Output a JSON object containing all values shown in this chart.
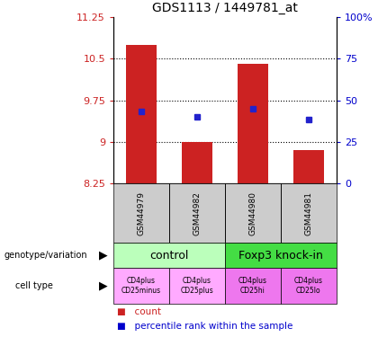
{
  "title": "GDS1113 / 1449781_at",
  "samples": [
    "GSM44979",
    "GSM44982",
    "GSM44980",
    "GSM44981"
  ],
  "bar_values": [
    10.75,
    9.0,
    10.4,
    8.85
  ],
  "bar_base": 8.25,
  "blue_dot_values": [
    9.55,
    9.45,
    9.6,
    9.4
  ],
  "ylim_left": [
    8.25,
    11.25
  ],
  "ylim_right": [
    0,
    100
  ],
  "yticks_left": [
    8.25,
    9.0,
    9.75,
    10.5,
    11.25
  ],
  "ytick_labels_left": [
    "8.25",
    "9",
    "9.75",
    "10.5",
    "11.25"
  ],
  "yticks_right": [
    0,
    25,
    50,
    75,
    100
  ],
  "ytick_labels_right": [
    "0",
    "25",
    "50",
    "75",
    "100%"
  ],
  "hlines": [
    9.0,
    9.75,
    10.5
  ],
  "bar_color": "#cc2222",
  "dot_color": "#2222cc",
  "bar_width": 0.55,
  "genotype_groups": [
    {
      "label": "control",
      "cols": [
        0,
        1
      ],
      "color": "#bbffbb"
    },
    {
      "label": "Foxp3 knock-in",
      "cols": [
        2,
        3
      ],
      "color": "#44dd44"
    }
  ],
  "cell_types": [
    {
      "label": "CD4plus\nCD25minus",
      "col": 0,
      "color": "#ffaaff"
    },
    {
      "label": "CD4plus\nCD25plus",
      "col": 1,
      "color": "#ffaaff"
    },
    {
      "label": "CD4plus\nCD25hi",
      "col": 2,
      "color": "#ee77ee"
    },
    {
      "label": "CD4plus\nCD25lo",
      "col": 3,
      "color": "#ee77ee"
    }
  ],
  "left_label_color": "#cc2222",
  "right_label_color": "#0000cc",
  "sample_box_color": "#cccccc",
  "legend_count_color": "#cc2222",
  "legend_pct_color": "#0000cc"
}
